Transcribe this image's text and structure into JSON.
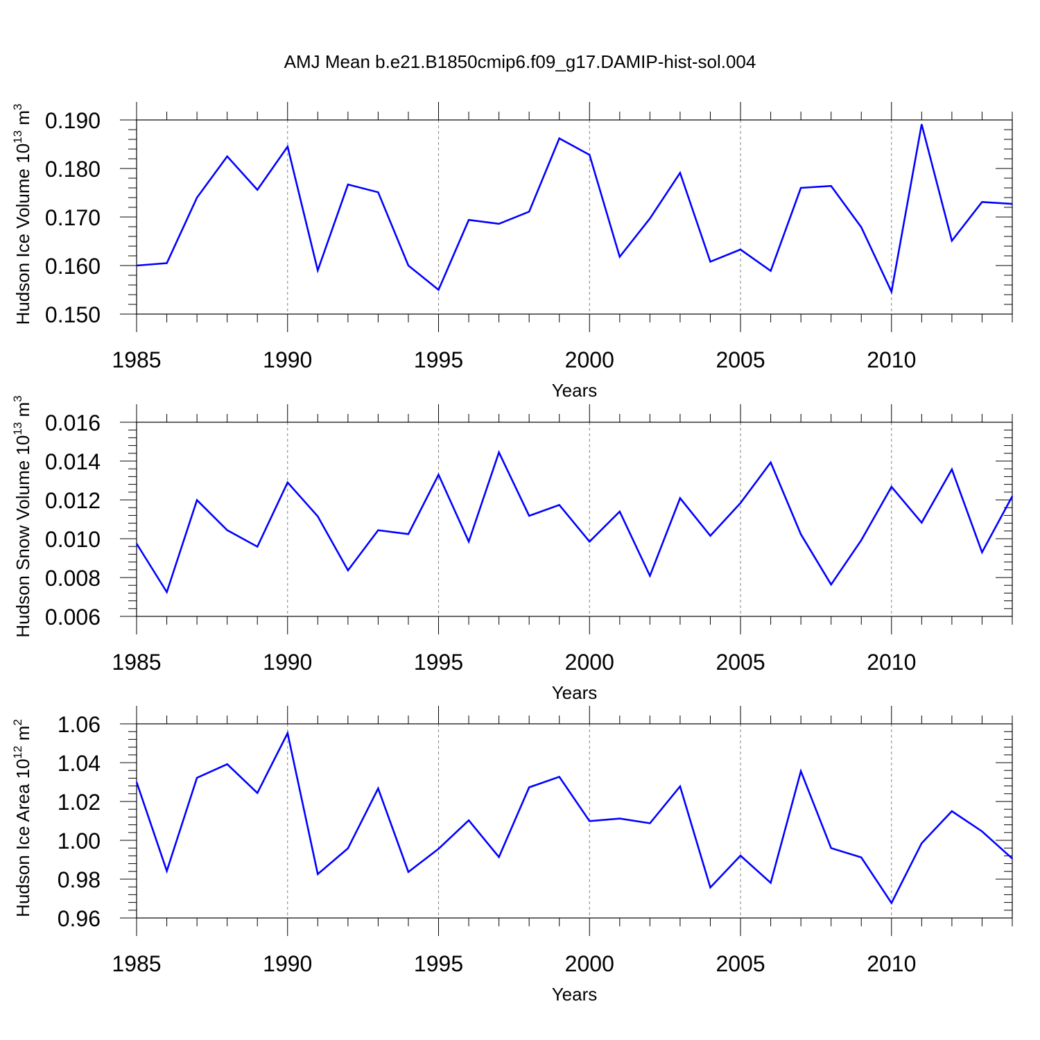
{
  "title": "AMJ Mean b.e21.B1850cmip6.f09_g17.DAMIP-hist-sol.004",
  "colors": {
    "line": "#0000ff",
    "axis": "#000000",
    "grid": "#808080"
  },
  "chart_data": [
    {
      "type": "line",
      "ylabel_main": "Hudson Ice Volume 10",
      "ylabel_exp": "13",
      "ylabel_unit": " m",
      "ylabel_unit_exp": "3",
      "xlabel": "Years",
      "xlim": [
        1985,
        2014
      ],
      "ylim": [
        0.15,
        0.19
      ],
      "yticks": [
        "0.150",
        "0.160",
        "0.170",
        "0.180",
        "0.190"
      ],
      "xticks": [
        "1985",
        "1990",
        "1995",
        "2000",
        "2005",
        "2010"
      ],
      "grid": "dashed vertical at major x ticks",
      "x": [
        1985,
        1986,
        1987,
        1988,
        1989,
        1990,
        1991,
        1992,
        1993,
        1994,
        1995,
        1996,
        1997,
        1998,
        1999,
        2000,
        2001,
        2002,
        2003,
        2004,
        2005,
        2006,
        2007,
        2008,
        2009,
        2010,
        2011,
        2012,
        2013,
        2014
      ],
      "series": [
        {
          "values": [
            0.16,
            0.1605,
            0.174,
            0.1825,
            0.1756,
            0.1845,
            0.159,
            0.1767,
            0.1751,
            0.16,
            0.155,
            0.1694,
            0.1686,
            0.1711,
            0.1862,
            0.1828,
            0.1618,
            0.1697,
            0.1791,
            0.1608,
            0.1633,
            0.1589,
            0.176,
            0.1764,
            0.1679,
            0.1546,
            0.1891,
            0.1651,
            0.1731,
            0.1727
          ]
        }
      ]
    },
    {
      "type": "line",
      "ylabel_main": "Hudson Snow Volume 10",
      "ylabel_exp": "13",
      "ylabel_unit": " m",
      "ylabel_unit_exp": "3",
      "xlabel": "Years",
      "xlim": [
        1985,
        2014
      ],
      "ylim": [
        0.006,
        0.016
      ],
      "yticks": [
        "0.006",
        "0.008",
        "0.010",
        "0.012",
        "0.014",
        "0.016"
      ],
      "xticks": [
        "1985",
        "1990",
        "1995",
        "2000",
        "2005",
        "2010"
      ],
      "grid": "dashed vertical at major x ticks",
      "x": [
        1985,
        1986,
        1987,
        1988,
        1989,
        1990,
        1991,
        1992,
        1993,
        1994,
        1995,
        1996,
        1997,
        1998,
        1999,
        2000,
        2001,
        2002,
        2003,
        2004,
        2005,
        2006,
        2007,
        2008,
        2009,
        2010,
        2011,
        2012,
        2013,
        2014
      ],
      "series": [
        {
          "values": [
            0.00975,
            0.00725,
            0.01199,
            0.01044,
            0.00959,
            0.0129,
            0.01115,
            0.00837,
            0.01044,
            0.01024,
            0.0133,
            0.00985,
            0.01445,
            0.01118,
            0.01174,
            0.00985,
            0.0114,
            0.00809,
            0.01209,
            0.01015,
            0.01184,
            0.01393,
            0.01023,
            0.00764,
            0.00992,
            0.01267,
            0.01083,
            0.01357,
            0.0093,
            0.01219
          ]
        }
      ]
    },
    {
      "type": "line",
      "ylabel_main": "Hudson Ice Area 10",
      "ylabel_exp": "12",
      "ylabel_unit": " m",
      "ylabel_unit_exp": "2",
      "xlabel": "Years",
      "xlim": [
        1985,
        2014
      ],
      "ylim": [
        0.96,
        1.06
      ],
      "yticks": [
        "0.96",
        "0.98",
        "1.00",
        "1.02",
        "1.04",
        "1.06"
      ],
      "xticks": [
        "1985",
        "1990",
        "1995",
        "2000",
        "2005",
        "2010"
      ],
      "grid": "dashed vertical at major x ticks",
      "x": [
        1985,
        1986,
        1987,
        1988,
        1989,
        1990,
        1991,
        1992,
        1993,
        1994,
        1995,
        1996,
        1997,
        1998,
        1999,
        2000,
        2001,
        2002,
        2003,
        2004,
        2005,
        2006,
        2007,
        2008,
        2009,
        2010,
        2011,
        2012,
        2013,
        2014
      ],
      "series": [
        {
          "values": [
            1.03,
            0.9842,
            1.0322,
            1.0392,
            1.0244,
            1.0552,
            0.9826,
            0.9959,
            1.0267,
            0.9837,
            0.9956,
            1.0103,
            0.9914,
            1.0273,
            1.0327,
            1.0099,
            1.0112,
            1.0088,
            1.0278,
            0.9757,
            0.9921,
            0.9781,
            1.0356,
            0.996,
            0.9912,
            0.9677,
            0.9985,
            1.015,
            1.0046,
            0.9906
          ]
        }
      ]
    }
  ]
}
